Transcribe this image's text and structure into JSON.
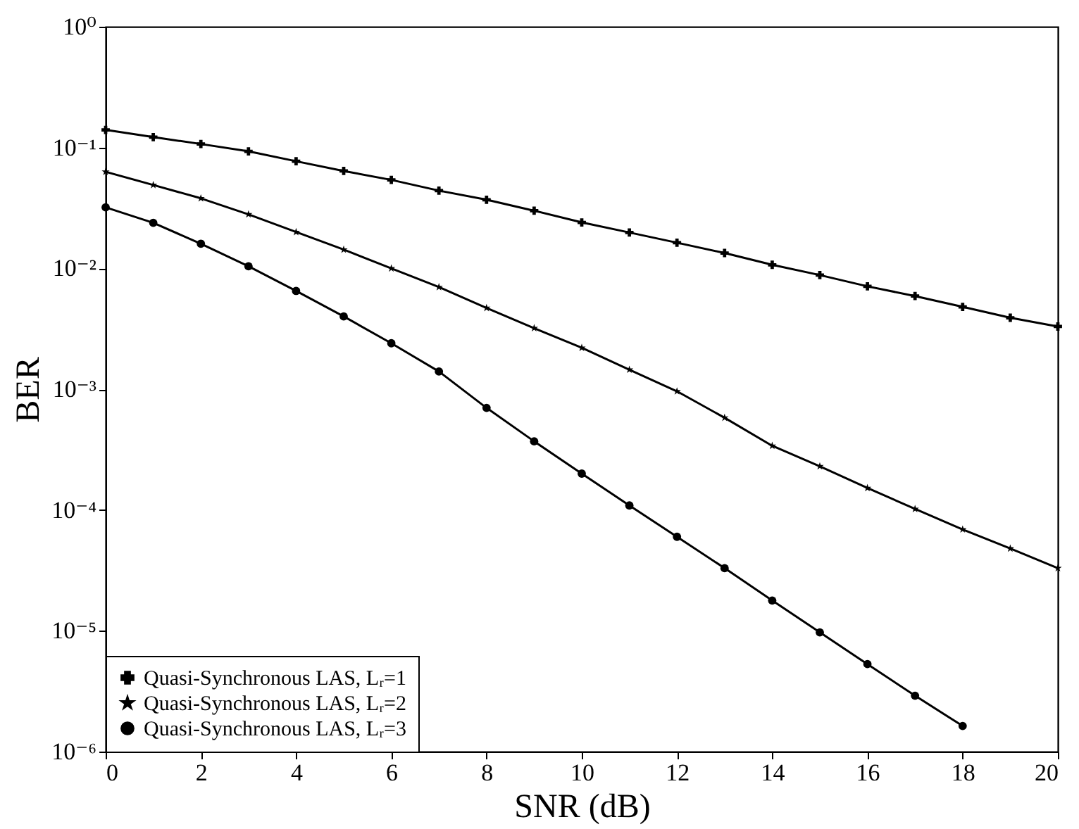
{
  "chart_data": {
    "type": "line",
    "xlabel": "SNR (dB)",
    "ylabel": "BER",
    "log": "y",
    "legend": "bottom left",
    "xlim": [
      0,
      20
    ],
    "xticks": [
      0,
      2,
      4,
      6,
      8,
      10,
      12,
      14,
      16,
      18,
      20
    ],
    "ylim": [
      1e-06,
      1
    ],
    "yticks": [
      {
        "value": 1e-06,
        "label": "10⁻⁶"
      },
      {
        "value": 1e-05,
        "label": "10⁻⁵"
      },
      {
        "value": 0.0001,
        "label": "10⁻⁴"
      },
      {
        "value": 0.001,
        "label": "10⁻³"
      },
      {
        "value": 0.01,
        "label": "10⁻²"
      },
      {
        "value": 0.1,
        "label": "10⁻¹"
      },
      {
        "value": 1,
        "label": "10⁰"
      }
    ],
    "x": [
      0,
      1,
      2,
      3,
      4,
      5,
      6,
      7,
      8,
      9,
      10,
      11,
      12,
      13,
      14,
      15,
      16,
      17,
      18,
      19,
      20
    ],
    "series": [
      {
        "name": "Quasi-Synchronous LAS, Lᵣ=1",
        "color": "#000000",
        "marker": "cross",
        "values": [
          0.14,
          0.122,
          0.107,
          0.093,
          0.077,
          0.064,
          0.054,
          0.044,
          0.037,
          0.03,
          0.024,
          0.0198,
          0.0163,
          0.0134,
          0.0107,
          0.0088,
          0.0071,
          0.0059,
          0.0048,
          0.0039,
          0.0033
        ]
      },
      {
        "name": "Quasi-Synchronous LAS, Lᵣ=2",
        "color": "#000000",
        "marker": "star",
        "values": [
          0.063,
          0.049,
          0.038,
          0.028,
          0.02,
          0.0143,
          0.01,
          0.007,
          0.0047,
          0.0032,
          0.0022,
          0.00145,
          0.00096,
          0.00058,
          0.00034,
          0.00023,
          0.000152,
          0.000102,
          6.9e-05,
          4.8e-05,
          3.3e-05
        ]
      },
      {
        "name": "Quasi-Synchronous LAS, Lᵣ=3",
        "color": "#000000",
        "marker": "circle",
        "x": [
          0,
          1,
          2,
          3,
          4,
          5,
          6,
          7,
          8,
          9,
          10,
          11,
          12,
          13,
          14,
          15,
          16,
          17,
          18
        ],
        "values": [
          0.032,
          0.0238,
          0.016,
          0.0104,
          0.0065,
          0.004,
          0.0024,
          0.0014,
          0.0007,
          0.00037,
          0.0002,
          0.000109,
          6e-05,
          3.3e-05,
          1.78e-05,
          9.7e-06,
          5.3e-06,
          2.9e-06,
          1.63e-06
        ]
      }
    ]
  }
}
